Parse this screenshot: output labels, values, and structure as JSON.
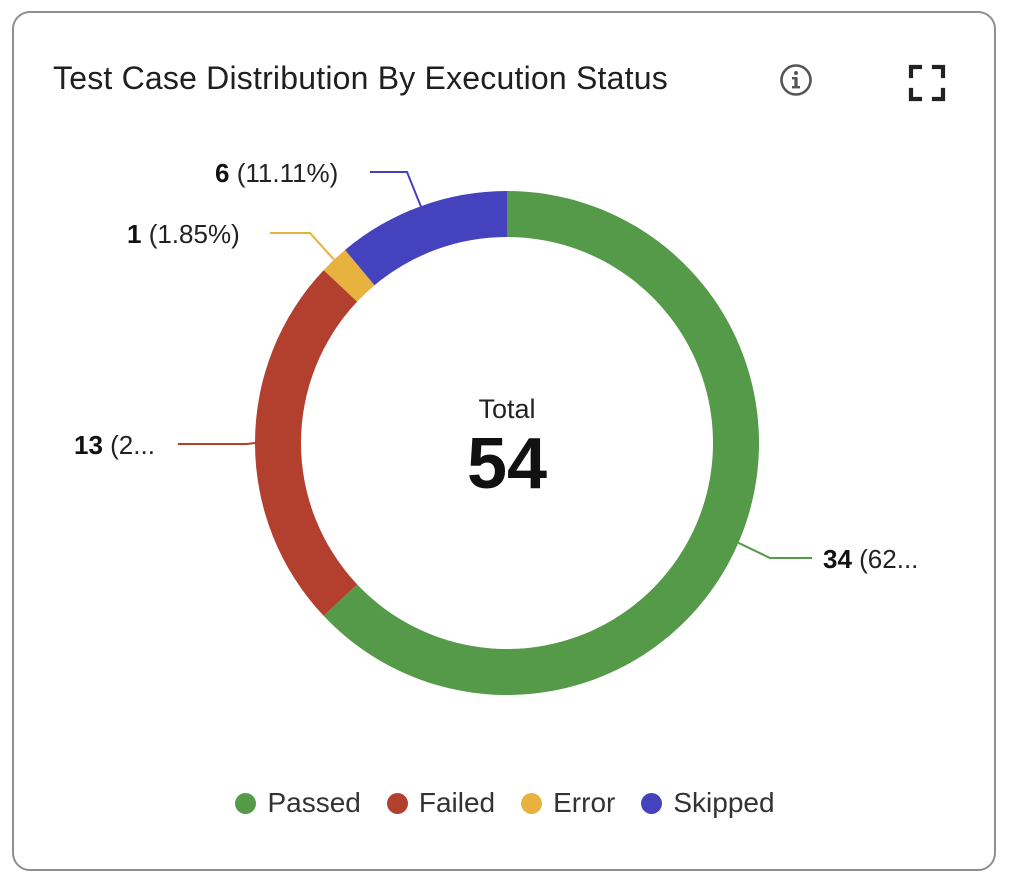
{
  "card": {
    "title": "Test Case Distribution By Execution Status",
    "info_icon": "info-icon",
    "expand_icon": "expand-icon"
  },
  "chart_data": {
    "type": "pie",
    "subtype": "donut",
    "title": "Test Case Distribution By Execution Status",
    "center_label": "Total",
    "center_value": "54",
    "slices": [
      {
        "name": "Passed",
        "value": 34,
        "label_count": "34",
        "label_rest": " (62...",
        "color": "#559a49"
      },
      {
        "name": "Failed",
        "value": 13,
        "label_count": "13",
        "label_rest": " (2...",
        "color": "#b33f2e"
      },
      {
        "name": "Error",
        "value": 1,
        "label_count": "1",
        "label_rest": " (1.85%)",
        "color": "#e8b23e"
      },
      {
        "name": "Skipped",
        "value": 6,
        "label_count": "6",
        "label_rest": " (11.11%)",
        "color": "#4443bd"
      }
    ],
    "legend_position": "bottom"
  }
}
